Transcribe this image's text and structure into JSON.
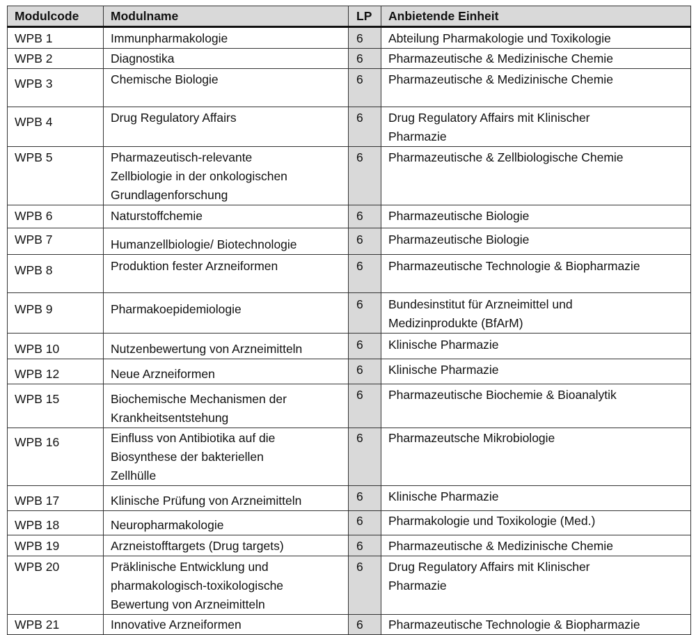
{
  "table": {
    "headers": [
      "Modulcode",
      "Modulname",
      "LP",
      "Anbietende Einheit"
    ],
    "rows": [
      {
        "code": "WPB 1",
        "name": [
          "Immunpharmakologie"
        ],
        "lp": "6",
        "unit": [
          "Abteilung Pharmakologie und Toxikologie"
        ]
      },
      {
        "code": "WPB 2",
        "name": [
          "Diagnostika"
        ],
        "lp": "6",
        "unit": [
          "Pharmazeutische & Medizinische Chemie"
        ]
      },
      {
        "code": "WPB 3",
        "name": [
          "Chemische Biologie"
        ],
        "lp": "6",
        "unit": [
          "Pharmazeutische & Medizinische Chemie"
        ]
      },
      {
        "code": "WPB 4",
        "name": [
          "Drug Regulatory Affairs"
        ],
        "lp": "6",
        "unit": [
          "Drug Regulatory Affairs mit Klinischer",
          "Pharmazie"
        ]
      },
      {
        "code": "WPB 5",
        "name": [
          "Pharmazeutisch-relevante",
          "Zellbiologie in der onkologischen",
          "Grundlagenforschung"
        ],
        "lp": "6",
        "unit": [
          "Pharmazeutische & Zellbiologische Chemie"
        ]
      },
      {
        "code": "WPB 6",
        "name": [
          "Naturstoffchemie"
        ],
        "lp": "6",
        "unit": [
          "Pharmazeutische Biologie"
        ]
      },
      {
        "code": "WPB 7",
        "name": [
          "Humanzellbiologie/ Biotechnologie"
        ],
        "lp": "6",
        "unit": [
          "Pharmazeutische Biologie"
        ]
      },
      {
        "code": "WPB 8",
        "name": [
          "Produktion fester Arzneiformen"
        ],
        "lp": "6",
        "unit": [
          "Pharmazeutische Technologie & Biopharmazie"
        ]
      },
      {
        "code": "WPB 9",
        "name": [
          "Pharmakoepidemiologie"
        ],
        "lp": "6",
        "unit": [
          "Bundesinstitut für Arzneimittel und",
          "Medizinprodukte (BfArM)"
        ]
      },
      {
        "code": "WPB 10",
        "name": [
          "Nutzenbewertung von Arzneimitteln"
        ],
        "lp": "6",
        "unit": [
          "Klinische Pharmazie"
        ]
      },
      {
        "code": "WPB 12",
        "name": [
          "Neue Arzneiformen"
        ],
        "lp": "6",
        "unit": [
          "Klinische Pharmazie"
        ]
      },
      {
        "code": "WPB 15",
        "name": [
          "Biochemische Mechanismen der",
          "Krankheitsentstehung"
        ],
        "lp": "6",
        "unit": [
          "Pharmazeutische Biochemie & Bioanalytik"
        ]
      },
      {
        "code": "WPB 16",
        "name": [
          "Einfluss von Antibiotika auf die",
          "Biosynthese der bakteriellen",
          "Zellhülle"
        ],
        "lp": "6",
        "unit": [
          "Pharmazeutsche Mikrobiologie"
        ]
      },
      {
        "code": "WPB 17",
        "name": [
          "Klinische Prüfung von Arzneimitteln"
        ],
        "lp": "6",
        "unit": [
          "Klinische Pharmazie"
        ]
      },
      {
        "code": "WPB 18",
        "name": [
          "Neuropharmakologie"
        ],
        "lp": "6",
        "unit": [
          "Pharmakologie und Toxikologie (Med.)"
        ]
      },
      {
        "code": "WPB 19",
        "name": [
          "Arzneistofftargets (Drug targets)"
        ],
        "lp": "6",
        "unit": [
          "Pharmazeutische & Medizinische Chemie"
        ]
      },
      {
        "code": "WPB 20",
        "name": [
          "Präklinische Entwicklung und",
          "pharmakologisch-toxikologische",
          "Bewertung von Arzneimitteln"
        ],
        "lp": "6",
        "unit": [
          "Drug Regulatory Affairs mit Klinischer",
          "Pharmazie"
        ]
      },
      {
        "code": "WPB 21",
        "name": [
          "Innovative Arzneiformen"
        ],
        "lp": "6",
        "unit": [
          "Pharmazeutische Technologie & Biopharmazie"
        ]
      }
    ]
  }
}
